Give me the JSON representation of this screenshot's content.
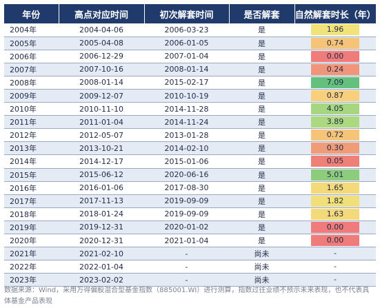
{
  "table": {
    "headers": [
      "年份",
      "高点对应时间",
      "初次解套时间",
      "是否解套",
      "自然解套时长（年）"
    ],
    "rows": [
      {
        "year": "2004年",
        "peak": "2004-04-06",
        "recover": "2006-03-23",
        "status": "是",
        "duration": "1.96",
        "color": "#f2e27a"
      },
      {
        "year": "2005年",
        "peak": "2005-04-08",
        "recover": "2006-01-05",
        "status": "是",
        "duration": "0.74",
        "color": "#f6c478"
      },
      {
        "year": "2006年",
        "peak": "2006-12-29",
        "recover": "2007-01-04",
        "status": "是",
        "duration": "0.00",
        "color": "#ef7b7b"
      },
      {
        "year": "2007年",
        "peak": "2007-10-16",
        "recover": "2008-01-14",
        "status": "是",
        "duration": "0.24",
        "color": "#f0957a"
      },
      {
        "year": "2008年",
        "peak": "2008-01-14",
        "recover": "2015-02-17",
        "status": "是",
        "duration": "7.09",
        "color": "#65c07e"
      },
      {
        "year": "2009年",
        "peak": "2009-12-07",
        "recover": "2010-10-19",
        "status": "是",
        "duration": "0.87",
        "color": "#f8cf7c"
      },
      {
        "year": "2010年",
        "peak": "2010-11-10",
        "recover": "2014-11-28",
        "status": "是",
        "duration": "4.05",
        "color": "#a6d67f"
      },
      {
        "year": "2011年",
        "peak": "2011-01-04",
        "recover": "2014-11-24",
        "status": "是",
        "duration": "3.89",
        "color": "#acd880"
      },
      {
        "year": "2012年",
        "peak": "2012-05-07",
        "recover": "2013-01-28",
        "status": "是",
        "duration": "0.72",
        "color": "#f6c478"
      },
      {
        "year": "2013年",
        "peak": "2013-10-21",
        "recover": "2014-02-10",
        "status": "是",
        "duration": "0.30",
        "color": "#f19c79"
      },
      {
        "year": "2014年",
        "peak": "2014-12-17",
        "recover": "2015-01-06",
        "status": "是",
        "duration": "0.05",
        "color": "#ef8077"
      },
      {
        "year": "2015年",
        "peak": "2015-06-12",
        "recover": "2020-06-16",
        "status": "是",
        "duration": "5.01",
        "color": "#8dcc7c"
      },
      {
        "year": "2016年",
        "peak": "2016-01-06",
        "recover": "2017-08-30",
        "status": "是",
        "duration": "1.65",
        "color": "#f4d97a"
      },
      {
        "year": "2017年",
        "peak": "2017-11-13",
        "recover": "2019-09-09",
        "status": "是",
        "duration": "1.82",
        "color": "#f1e07a"
      },
      {
        "year": "2018年",
        "peak": "2018-01-24",
        "recover": "2019-09-09",
        "status": "是",
        "duration": "1.63",
        "color": "#f4d97a"
      },
      {
        "year": "2019年",
        "peak": "2019-12-31",
        "recover": "2020-01-02",
        "status": "是",
        "duration": "0.00",
        "color": "#ef7b7b"
      },
      {
        "year": "2020年",
        "peak": "2020-12-31",
        "recover": "2021-01-04",
        "status": "是",
        "duration": "0.00",
        "color": "#ef7b7b"
      },
      {
        "year": "2021年",
        "peak": "2021-02-10",
        "recover": "-",
        "status": "尚未",
        "duration": "-",
        "color": ""
      },
      {
        "year": "2022年",
        "peak": "2022-01-04",
        "recover": "-",
        "status": "尚未",
        "duration": "-",
        "color": ""
      },
      {
        "year": "2023年",
        "peak": "2023-02-02",
        "recover": "-",
        "status": "尚未",
        "duration": "-",
        "color": ""
      }
    ]
  },
  "footnote": "数据来源：Wind，采用万得偏股混合型基金指数（885001.WI）进行测算，指数过往业绩不预示未来表现，也不代表具体基金产品表现"
}
